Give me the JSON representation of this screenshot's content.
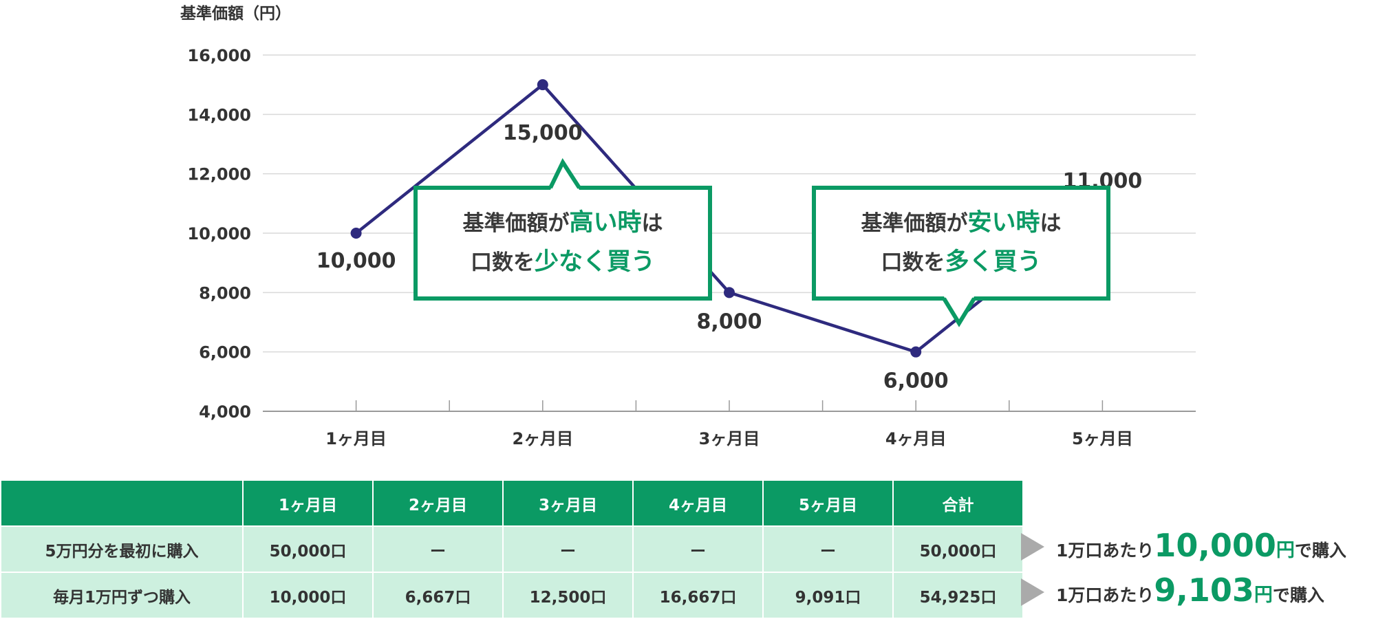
{
  "chart_data": {
    "type": "line",
    "ylabel": "基準価額（円）",
    "ylim": [
      4000,
      16000
    ],
    "yticks": [
      "4,000",
      "6,000",
      "8,000",
      "10,000",
      "12,000",
      "14,000",
      "16,000"
    ],
    "categories": [
      "1ヶ月目",
      "2ヶ月目",
      "3ヶ月目",
      "4ヶ月目",
      "5ヶ月目"
    ],
    "values": [
      10000,
      15000,
      8000,
      6000,
      11000
    ],
    "data_labels": [
      "10,000",
      "15,000",
      "8,000",
      "6,000",
      "11,000"
    ],
    "grid": true,
    "colors": {
      "line": "#2e2a7e",
      "grid": "#d9d9d9",
      "axis": "#999999"
    }
  },
  "callouts": {
    "high": {
      "line1_pre": "基準価額が",
      "line1_hl": "高い時",
      "line1_post": "は",
      "line2_pre": "口数を",
      "line2_hl": "少なく買う"
    },
    "low": {
      "line1_pre": "基準価額が",
      "line1_hl": "安い時",
      "line1_post": "は",
      "line2_pre": "口数を",
      "line2_hl": "多く買う"
    }
  },
  "table": {
    "headers": [
      "",
      "1ヶ月目",
      "2ヶ月目",
      "3ヶ月目",
      "4ヶ月目",
      "5ヶ月目",
      "合計"
    ],
    "rows": [
      {
        "label": "5万円分を最初に購入",
        "cells": [
          "50,000口",
          "ー",
          "ー",
          "ー",
          "ー",
          "50,000口"
        ]
      },
      {
        "label": "毎月1万円ずつ購入",
        "cells": [
          "10,000口",
          "6,667口",
          "12,500口",
          "16,667口",
          "9,091口",
          "54,925口"
        ]
      }
    ]
  },
  "notes": [
    {
      "pre": "1万口あたり",
      "value": "10,000",
      "unit": "円",
      "post": "で購入"
    },
    {
      "pre": "1万口あたり",
      "value": "9,103",
      "unit": "円",
      "post": "で購入"
    }
  ],
  "colors": {
    "accent": "#0b9a64",
    "accent_light": "#cdf0df",
    "line": "#2e2a7e"
  }
}
